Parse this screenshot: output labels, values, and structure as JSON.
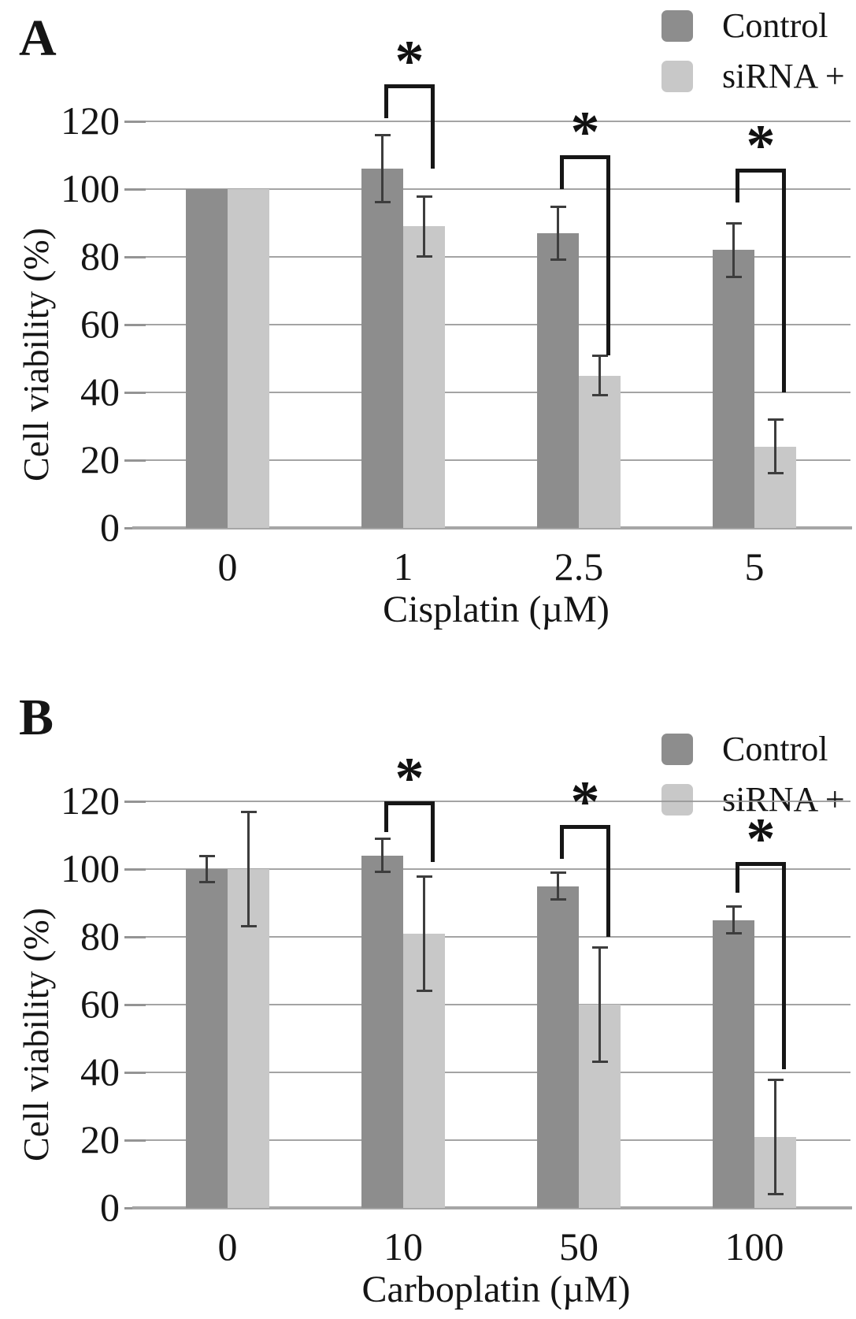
{
  "styles": {
    "background": "#ffffff",
    "control_color": "#8d8d8d",
    "sirna_color": "#c8c8c8",
    "grid_color": "#949494",
    "axis_color": "#a6a6a6",
    "error_bar_color": "#3d3d3d",
    "bracket_color": "#161616",
    "text_color": "#151515"
  },
  "chart_data": [
    {
      "type": "bar",
      "panel_label": "A",
      "xlabel": "Cisplatin (µM)",
      "ylabel": "Cell viability (%)",
      "categories": [
        "0",
        "1",
        "2.5",
        "5"
      ],
      "yticks": [
        0,
        20,
        40,
        60,
        80,
        100,
        120
      ],
      "ylim": [
        0,
        135
      ],
      "grid": true,
      "legend_position": "top-right",
      "series": [
        {
          "name": "Control",
          "color": "#8d8d8d",
          "values": [
            100,
            106,
            87,
            82
          ],
          "errors": [
            0,
            10,
            8,
            8
          ]
        },
        {
          "name": "siRNA +",
          "color": "#c8c8c8",
          "values": [
            100,
            89,
            45,
            24
          ],
          "errors": [
            0,
            9,
            6,
            8
          ]
        }
      ],
      "significance_brackets": [
        {
          "category": "1",
          "label": "*",
          "compares": [
            "Control",
            "siRNA +"
          ],
          "top_pct": 131,
          "left_arm_pct": 121,
          "right_arm_pct": 106
        },
        {
          "category": "2.5",
          "label": "*",
          "compares": [
            "Control",
            "siRNA +"
          ],
          "top_pct": 110,
          "left_arm_pct": 100,
          "right_arm_pct": 51
        },
        {
          "category": "5",
          "label": "*",
          "compares": [
            "Control",
            "siRNA +"
          ],
          "top_pct": 106,
          "left_arm_pct": 96,
          "right_arm_pct": 40
        }
      ]
    },
    {
      "type": "bar",
      "panel_label": "B",
      "xlabel": "Carboplatin (µM)",
      "ylabel": "Cell viability (%)",
      "categories": [
        "0",
        "10",
        "50",
        "100"
      ],
      "yticks": [
        0,
        20,
        40,
        60,
        80,
        100,
        120
      ],
      "ylim": [
        0,
        135
      ],
      "grid": true,
      "legend_position": "top-right",
      "series": [
        {
          "name": "Control",
          "color": "#8d8d8d",
          "values": [
            100,
            104,
            95,
            85
          ],
          "errors": [
            4,
            5,
            4,
            4
          ]
        },
        {
          "name": "siRNA +",
          "color": "#c8c8c8",
          "values": [
            100,
            81,
            60,
            21
          ],
          "errors": [
            17,
            17,
            17,
            17
          ]
        }
      ],
      "significance_brackets": [
        {
          "category": "10",
          "label": "*",
          "compares": [
            "Control",
            "siRNA +"
          ],
          "top_pct": 120,
          "left_arm_pct": 111,
          "right_arm_pct": 102
        },
        {
          "category": "50",
          "label": "*",
          "compares": [
            "Control",
            "siRNA +"
          ],
          "top_pct": 113,
          "left_arm_pct": 103,
          "right_arm_pct": 80
        },
        {
          "category": "100",
          "label": "*",
          "compares": [
            "Control",
            "siRNA +"
          ],
          "top_pct": 102,
          "left_arm_pct": 93,
          "right_arm_pct": 41
        }
      ]
    }
  ]
}
